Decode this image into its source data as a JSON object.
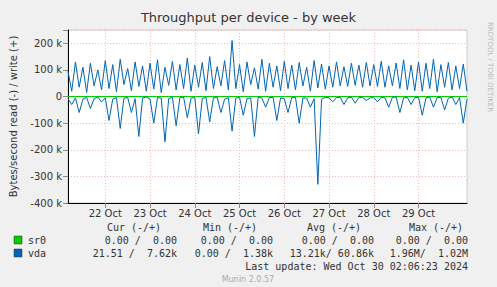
{
  "chart_data": {
    "type": "line",
    "title": "Throughput per device - by week",
    "y_label": "Bytes/second read (-) / write (+)",
    "categories": [
      null,
      null,
      null,
      null,
      null,
      null,
      null,
      null,
      null,
      null,
      "22 Oct",
      null,
      null,
      null,
      null,
      null,
      null,
      null,
      null,
      null,
      null,
      null,
      "23 Oct",
      null,
      null,
      null,
      null,
      null,
      null,
      null,
      null,
      null,
      null,
      null,
      "24 Oct",
      null,
      null,
      null,
      null,
      null,
      null,
      null,
      null,
      null,
      null,
      null,
      "25 Oct",
      null,
      null,
      null,
      null,
      null,
      null,
      null,
      null,
      null,
      null,
      null,
      "26 Oct",
      null,
      null,
      null,
      null,
      null,
      null,
      null,
      null,
      null,
      null,
      null,
      "27 Oct",
      null,
      null,
      null,
      null,
      null,
      null,
      null,
      null,
      null,
      null,
      null,
      "28 Oct",
      null,
      null,
      null,
      null,
      null,
      null,
      null,
      null,
      null,
      null,
      null,
      "29 Oct",
      null,
      null,
      null,
      null,
      null,
      null,
      null,
      null,
      null,
      null,
      null,
      null,
      null
    ],
    "series": [
      {
        "name": "sr0",
        "color": "#00cc00",
        "values": [
          0,
          0,
          0,
          0,
          0,
          0,
          0,
          0,
          0,
          0,
          0,
          0,
          0,
          0,
          0,
          0,
          0,
          0,
          0,
          0,
          0,
          0,
          0,
          0,
          0,
          0,
          0,
          0,
          0,
          0,
          0,
          0,
          0,
          0,
          0,
          0,
          0,
          0,
          0,
          0,
          0,
          0,
          0,
          0,
          0,
          0,
          0,
          0,
          0,
          0,
          0,
          0,
          0,
          0,
          0,
          0,
          0,
          0,
          0,
          0,
          0,
          0,
          0,
          0,
          0,
          0,
          0,
          0,
          0,
          0,
          0,
          0,
          0,
          0,
          0,
          0,
          0,
          0,
          0,
          0,
          0,
          0,
          0,
          0,
          0,
          0,
          0,
          0,
          0,
          0,
          0,
          0,
          0,
          0,
          0,
          0,
          0,
          0,
          0,
          0,
          0,
          0,
          0,
          0,
          0,
          0,
          0,
          0
        ],
        "read_values": [
          0,
          0,
          0,
          0,
          0,
          0,
          0,
          0,
          0,
          0,
          0,
          0,
          0,
          0,
          0,
          0,
          0,
          0,
          0,
          0,
          0,
          0,
          0,
          0,
          0,
          0,
          0,
          0,
          0,
          0,
          0,
          0,
          0,
          0,
          0,
          0,
          0,
          0,
          0,
          0,
          0,
          0,
          0,
          0,
          0,
          0,
          0,
          0,
          0,
          0,
          0,
          0,
          0,
          0,
          0,
          0,
          0,
          0,
          0,
          0,
          0,
          0,
          0,
          0,
          0,
          0,
          0,
          0,
          0,
          0,
          0,
          0,
          0,
          0,
          0,
          0,
          0,
          0,
          0,
          0,
          0,
          0,
          0,
          0,
          0,
          0,
          0,
          0,
          0,
          0,
          0,
          0,
          0,
          0,
          0,
          0,
          0,
          0,
          0,
          0,
          0,
          0,
          0,
          0,
          0,
          0,
          0,
          0
        ],
        "stats": [
          "0.00 /  0.00",
          "0.00 /  0.00",
          "0.00 /  0.00",
          "0.00 /  0.00"
        ]
      },
      {
        "name": "vda",
        "color": "#0066b3",
        "values": [
          95000,
          20000,
          130000,
          35000,
          110000,
          15000,
          125000,
          40000,
          100000,
          25000,
          135000,
          30000,
          120000,
          18000,
          140000,
          45000,
          105000,
          22000,
          130000,
          38000,
          115000,
          20000,
          125000,
          28000,
          138000,
          15000,
          110000,
          42000,
          132000,
          25000,
          120000,
          30000,
          145000,
          20000,
          118000,
          35000,
          128000,
          22000,
          150000,
          30000,
          112000,
          40000,
          135000,
          25000,
          210000,
          30000,
          120000,
          18000,
          130000,
          45000,
          108000,
          28000,
          140000,
          20000,
          125000,
          35000,
          115000,
          22000,
          132000,
          30000,
          118000,
          25000,
          128000,
          40000,
          110000,
          20000,
          135000,
          32000,
          122000,
          28000,
          115000,
          35000,
          130000,
          40000,
          112000,
          38000,
          125000,
          42000,
          118000,
          35000,
          128000,
          40000,
          120000,
          38000,
          132000,
          35000,
          115000,
          40000,
          126000,
          30000,
          138000,
          25000,
          118000,
          22000,
          130000,
          20000,
          125000,
          30000,
          140000,
          18000,
          120000,
          35000,
          128000,
          25000,
          115000,
          30000,
          122000,
          20000
        ],
        "read_values": [
          -8000,
          -30000,
          -5000,
          -60000,
          -10000,
          -3000,
          -45000,
          -8000,
          -2000,
          -20000,
          -5000,
          -90000,
          -10000,
          -4000,
          -120000,
          -6000,
          -3000,
          -60000,
          -8000,
          -150000,
          -5000,
          -2000,
          -10000,
          -100000,
          -4000,
          -6000,
          -170000,
          -8000,
          -3000,
          -110000,
          -5000,
          -2000,
          -80000,
          -6000,
          -4000,
          -140000,
          -8000,
          -3000,
          -95000,
          -5000,
          -2000,
          -60000,
          -10000,
          -4000,
          -130000,
          -6000,
          -3000,
          -70000,
          -8000,
          -5000,
          -150000,
          -2000,
          -6000,
          -40000,
          -4000,
          -3000,
          -90000,
          -5000,
          -8000,
          -60000,
          -4000,
          -3000,
          -100000,
          -5000,
          -6000,
          -40000,
          -8000,
          -330000,
          -10000,
          -3000,
          -5000,
          -20000,
          -4000,
          -3000,
          -30000,
          -5000,
          -2000,
          -25000,
          -4000,
          -3000,
          -15000,
          -5000,
          -4000,
          -20000,
          -3000,
          -5000,
          -40000,
          -3000,
          -2000,
          -60000,
          -5000,
          -3000,
          -30000,
          -4000,
          -3000,
          -70000,
          -5000,
          -2000,
          -40000,
          -4000,
          -3000,
          -50000,
          -6000,
          -2000,
          -30000,
          -4000,
          -100000,
          -10000
        ],
        "stats": [
          "21.51 /  7.62k",
          "0.00 /  1.38k",
          "13.21k/ 60.86k",
          "1.96M/  1.02M"
        ]
      }
    ],
    "stats_header": [
      "Cur (-/+)",
      "Min (-/+)",
      "Avg (-/+)",
      "Max (-/+)"
    ],
    "last_update": "Last update: Wed Oct 30 02:06:23 2024",
    "generator": "Munin 2.0.57",
    "watermark": "RRDTOOL / TOBI OETIKER",
    "ylim": [
      -400000,
      250000
    ],
    "yticks": [
      {
        "value": -400000,
        "label": "-400 k"
      },
      {
        "value": -300000,
        "label": "-300 k"
      },
      {
        "value": -200000,
        "label": "-200 k"
      },
      {
        "value": -100000,
        "label": "-100 k"
      },
      0,
      {
        "value": 100000,
        "label": "100 k"
      },
      {
        "value": 200000,
        "label": "200 k"
      }
    ],
    "grid": true
  }
}
